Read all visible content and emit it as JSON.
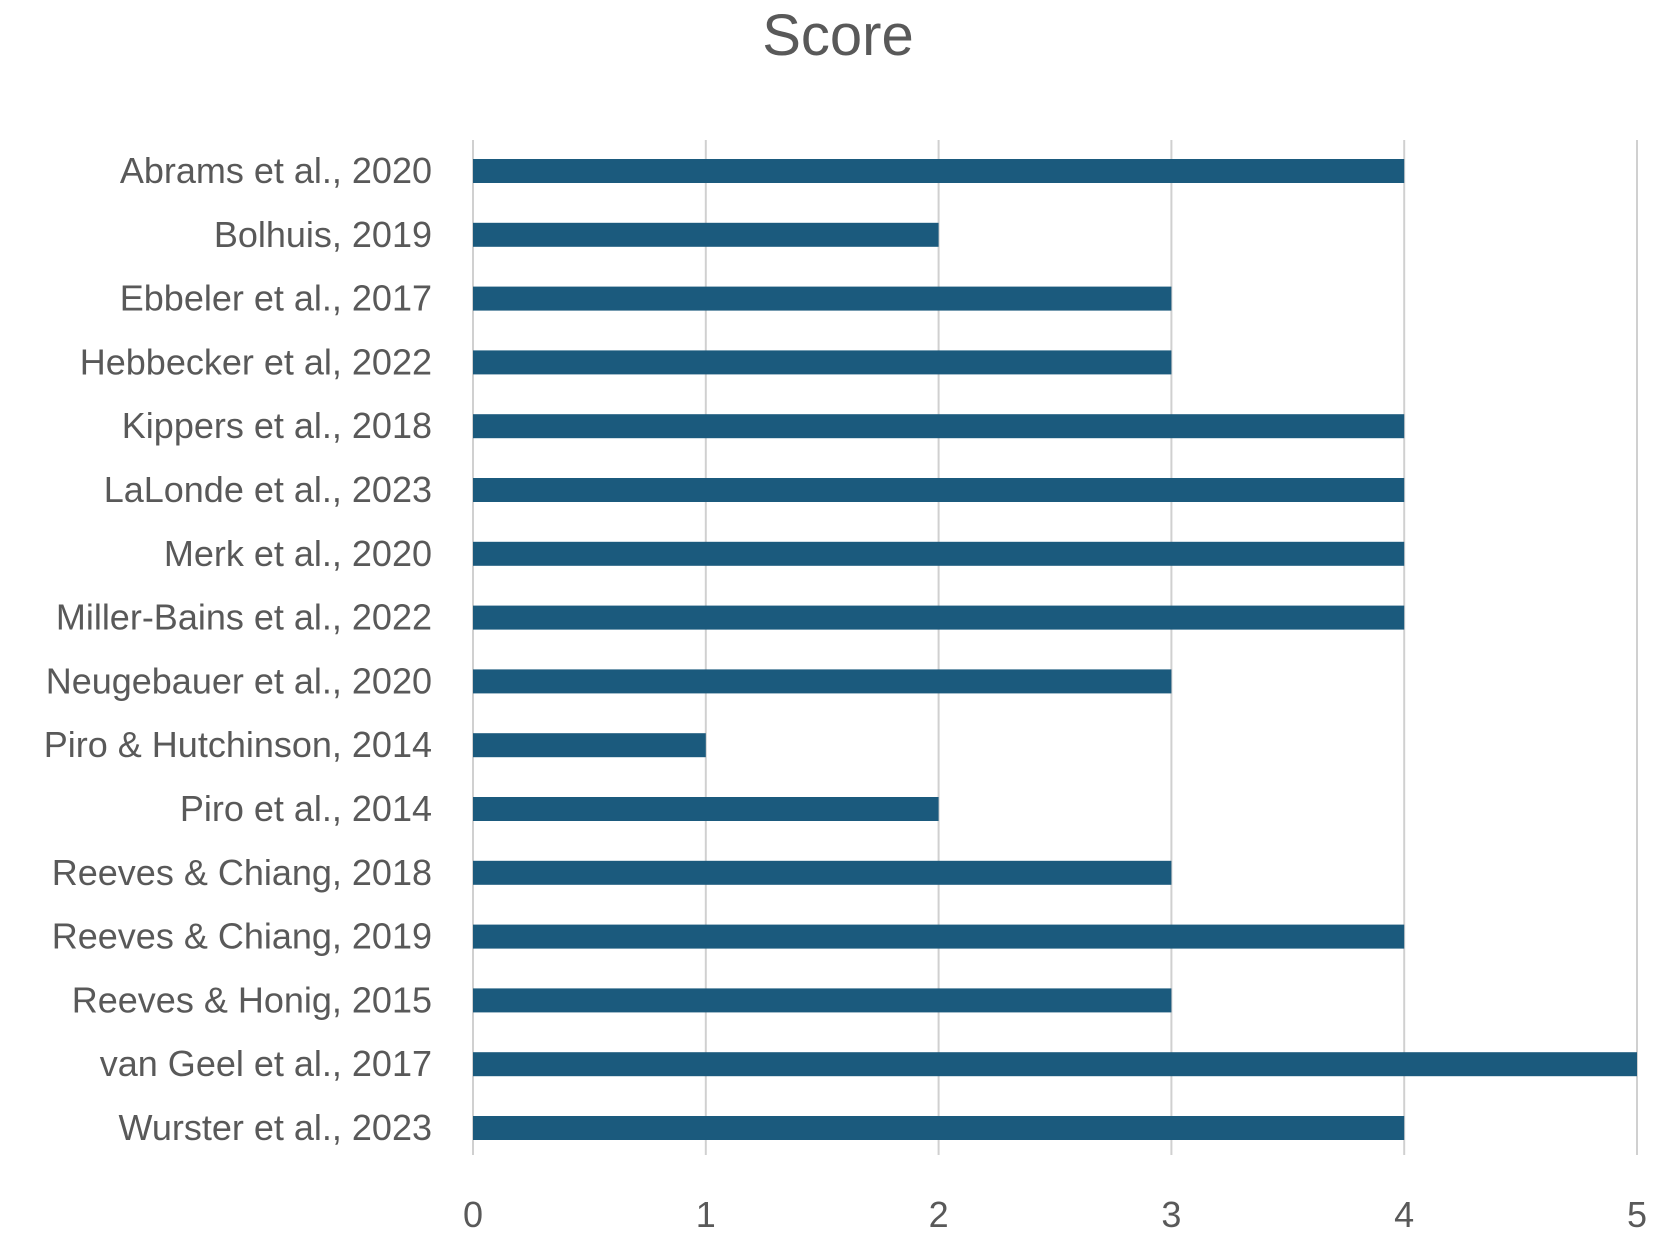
{
  "chart_data": {
    "type": "bar",
    "orientation": "horizontal",
    "title": "Score",
    "xlabel": "",
    "ylabel": "",
    "categories": [
      "Abrams et al., 2020",
      "Bolhuis, 2019",
      "Ebbeler et al., 2017",
      "Hebbecker et al, 2022",
      "Kippers et al., 2018",
      "LaLonde et al., 2023",
      "Merk et al., 2020",
      "Miller-Bains et al., 2022",
      "Neugebauer et al., 2020",
      "Piro & Hutchinson, 2014",
      "Piro et al., 2014",
      "Reeves & Chiang, 2018",
      "Reeves & Chiang, 2019",
      "Reeves & Honig, 2015",
      "van Geel et al., 2017",
      "Wurster et al., 2023"
    ],
    "values": [
      4,
      2,
      3,
      3,
      4,
      4,
      4,
      4,
      3,
      1,
      2,
      3,
      4,
      3,
      5,
      4
    ],
    "xlim": [
      0,
      5
    ],
    "x_ticks": [
      "0",
      "1",
      "2",
      "3",
      "4",
      "5"
    ],
    "grid": true,
    "legend": "none",
    "bar_color": "#1b5a7d"
  }
}
